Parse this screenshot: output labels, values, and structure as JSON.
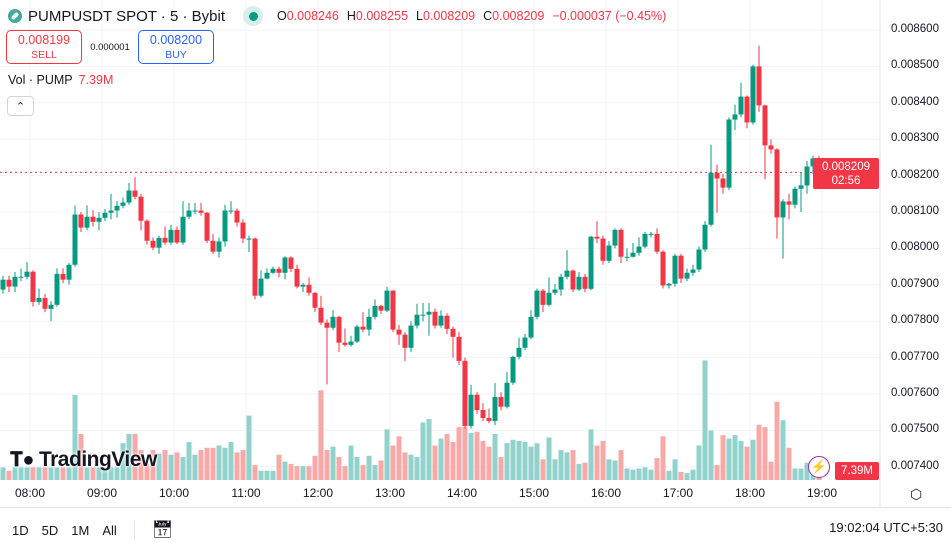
{
  "header": {
    "symbol": "PUMPUSDT SPOT · 5 · Bybit",
    "o_label": "O",
    "o": "0.008246",
    "h_label": "H",
    "h": "0.008255",
    "l_label": "L",
    "l": "0.008209",
    "c_label": "C",
    "c": "0.008209",
    "change": "−0.000037 (−0.45%)"
  },
  "trade": {
    "sell_price": "0.008199",
    "sell_label": "SELL",
    "spread": "0.000001",
    "buy_price": "0.008200",
    "buy_label": "BUY"
  },
  "volume_legend": {
    "label": "Vol · PUMP",
    "value": "7.39M"
  },
  "price_label": {
    "price": "0.008209",
    "countdown": "02:56"
  },
  "volume_label": "7.39M",
  "logo": "TradingView",
  "bottom": {
    "ranges": [
      "1D",
      "5D",
      "1M",
      "All"
    ],
    "clock": "19:02:04 UTC+5:30"
  },
  "colors": {
    "up": "#089981",
    "down": "#f23645",
    "vol_up": "#92d2cc",
    "vol_down": "#f7a9a7",
    "price_line": "#f23645"
  },
  "icons": {
    "symbol": "link-icon",
    "live": "market-open-dot-icon",
    "collapse": "chevron-up-icon",
    "bolt": "lightning-icon",
    "settings": "gear-icon",
    "calendar": "calendar-goto-icon"
  },
  "chart_data": {
    "type": "candlestick",
    "interval": "5",
    "y_ticks": [
      "0.008600",
      "0.008500",
      "0.008400",
      "0.008300",
      "0.008200",
      "0.008100",
      "0.008000",
      "0.007900",
      "0.007800",
      "0.007700",
      "0.007600",
      "0.007500",
      "0.007400"
    ],
    "x_ticks": [
      "08:00",
      "09:00",
      "10:00",
      "11:00",
      "12:00",
      "13:00",
      "14:00",
      "15:00",
      "16:00",
      "17:00",
      "18:00",
      "19:00"
    ],
    "ylim": [
      0.00737,
      0.00869
    ],
    "grid": true,
    "current_price": 0.008209,
    "close": [
      0.007914,
      0.007895,
      0.007922,
      0.007922,
      0.007936,
      0.007853,
      0.007864,
      0.007834,
      0.007845,
      0.00793,
      0.007914,
      0.007955,
      0.008093,
      0.008057,
      0.008087,
      0.008073,
      0.008084,
      0.008098,
      0.008104,
      0.008117,
      0.008126,
      0.008159,
      0.008142,
      0.008076,
      0.008021,
      0.008002,
      0.008029,
      0.008016,
      0.008051,
      0.008016,
      0.008087,
      0.008104,
      0.008104,
      0.008098,
      0.008021,
      0.007991,
      0.008019,
      0.008104,
      0.008104,
      0.008071,
      0.008027,
      0.008027,
      0.00787,
      0.007917,
      0.007933,
      0.007944,
      0.007933,
      0.007975,
      0.007944,
      0.007895,
      0.0079,
      0.007878,
      0.007837,
      0.007796,
      0.007782,
      0.007812,
      0.007741,
      0.007735,
      0.007744,
      0.007785,
      0.007777,
      0.007812,
      0.007842,
      0.007829,
      0.007884,
      0.007777,
      0.007763,
      0.007727,
      0.007788,
      0.007818,
      0.007818,
      0.007826,
      0.007788,
      0.007815,
      0.007779,
      0.007757,
      0.007691,
      0.007512,
      0.007598,
      0.007556,
      0.007534,
      0.007526,
      0.007592,
      0.007565,
      0.007631,
      0.007702,
      0.007727,
      0.007755,
      0.007812,
      0.007884,
      0.007845,
      0.007878,
      0.007887,
      0.007922,
      0.007939,
      0.007887,
      0.007922,
      0.007889,
      0.008032,
      0.008027,
      0.007966,
      0.008008,
      0.008051,
      0.007977,
      0.007977,
      0.007988,
      0.008005,
      0.00804,
      0.00804,
      0.007991,
      0.007898,
      0.007903,
      0.00798,
      0.007917,
      0.007933,
      0.007942,
      0.007997,
      0.008065,
      0.008208,
      0.008192,
      0.008167,
      0.008354,
      0.008368,
      0.008417,
      0.008346,
      0.0085,
      0.008393,
      0.008283,
      0.008272,
      0.008085,
      0.008129,
      0.00812,
      0.008164,
      0.008173,
      0.008225,
      0.008247,
      0.008209
    ],
    "open": [
      0.007887,
      0.007914,
      0.007895,
      0.007922,
      0.007922,
      0.007936,
      0.007853,
      0.007864,
      0.007834,
      0.007845,
      0.00793,
      0.007914,
      0.007955,
      0.008093,
      0.008057,
      0.008087,
      0.008073,
      0.008084,
      0.008098,
      0.008104,
      0.008117,
      0.008126,
      0.008159,
      0.008142,
      0.008076,
      0.008021,
      0.008002,
      0.008029,
      0.008016,
      0.008051,
      0.008016,
      0.008087,
      0.008104,
      0.008104,
      0.008098,
      0.008021,
      0.007991,
      0.008019,
      0.008104,
      0.008104,
      0.008071,
      0.008027,
      0.008027,
      0.00787,
      0.007917,
      0.007933,
      0.007944,
      0.007933,
      0.007975,
      0.007944,
      0.007895,
      0.0079,
      0.007878,
      0.007837,
      0.007796,
      0.007782,
      0.007812,
      0.007741,
      0.007735,
      0.007744,
      0.007785,
      0.007777,
      0.007812,
      0.007842,
      0.007829,
      0.007884,
      0.007777,
      0.007763,
      0.007727,
      0.007788,
      0.007818,
      0.007818,
      0.007826,
      0.007788,
      0.007815,
      0.007779,
      0.007757,
      0.007691,
      0.007512,
      0.007598,
      0.007556,
      0.007534,
      0.007526,
      0.007592,
      0.007565,
      0.007631,
      0.007702,
      0.007727,
      0.007755,
      0.007812,
      0.007884,
      0.007845,
      0.007878,
      0.007887,
      0.007922,
      0.007939,
      0.007887,
      0.007922,
      0.007889,
      0.008032,
      0.008027,
      0.007966,
      0.008008,
      0.008051,
      0.007977,
      0.007977,
      0.007988,
      0.008005,
      0.00804,
      0.00804,
      0.007991,
      0.007898,
      0.007903,
      0.00798,
      0.007917,
      0.007933,
      0.007942,
      0.007997,
      0.008065,
      0.008208,
      0.008192,
      0.008167,
      0.008354,
      0.008368,
      0.008417,
      0.008346,
      0.0085,
      0.008393,
      0.008283,
      0.008272,
      0.008085,
      0.008129,
      0.00812,
      0.008164,
      0.008173,
      0.008225,
      0.008246
    ],
    "high": [
      0.007925,
      0.007925,
      0.007935,
      0.007945,
      0.007962,
      0.00794,
      0.00789,
      0.007875,
      0.007855,
      0.007945,
      0.007945,
      0.00796,
      0.008118,
      0.0081,
      0.008118,
      0.008105,
      0.0081,
      0.008108,
      0.00815,
      0.00813,
      0.00814,
      0.00818,
      0.008195,
      0.00815,
      0.00808,
      0.00803,
      0.008035,
      0.00806,
      0.008065,
      0.00806,
      0.00813,
      0.008125,
      0.008125,
      0.008125,
      0.0081,
      0.00804,
      0.00803,
      0.00812,
      0.00813,
      0.00811,
      0.00808,
      0.008035,
      0.00803,
      0.00794,
      0.007945,
      0.00795,
      0.00795,
      0.007978,
      0.007978,
      0.007955,
      0.007905,
      0.00792,
      0.00788,
      0.00787,
      0.007805,
      0.00783,
      0.007815,
      0.00778,
      0.00776,
      0.00779,
      0.007825,
      0.007835,
      0.00786,
      0.007845,
      0.007895,
      0.007885,
      0.00779,
      0.00777,
      0.0078,
      0.007848,
      0.00785,
      0.00785,
      0.007835,
      0.00783,
      0.007822,
      0.007785,
      0.00777,
      0.0077,
      0.007625,
      0.007605,
      0.007575,
      0.00756,
      0.00763,
      0.007605,
      0.00766,
      0.007705,
      0.007755,
      0.007765,
      0.00783,
      0.00789,
      0.007888,
      0.00792,
      0.007902,
      0.00793,
      0.007995,
      0.007942,
      0.007935,
      0.00793,
      0.008035,
      0.008075,
      0.008035,
      0.00802,
      0.008055,
      0.008055,
      0.008,
      0.008015,
      0.00803,
      0.008045,
      0.008045,
      0.008055,
      0.007995,
      0.007905,
      0.007985,
      0.007985,
      0.007945,
      0.007955,
      0.008005,
      0.008075,
      0.008285,
      0.00823,
      0.008205,
      0.00836,
      0.008395,
      0.008455,
      0.00842,
      0.008505,
      0.008557,
      0.008395,
      0.0083,
      0.008275,
      0.008135,
      0.00815,
      0.00817,
      0.00821,
      0.00824,
      0.008255,
      0.008255
    ],
    "low": [
      0.007875,
      0.00788,
      0.00788,
      0.00791,
      0.007915,
      0.00784,
      0.007845,
      0.007825,
      0.0078,
      0.00784,
      0.007905,
      0.0079,
      0.00795,
      0.008045,
      0.00805,
      0.00806,
      0.00805,
      0.008075,
      0.00808,
      0.008085,
      0.00811,
      0.00812,
      0.008135,
      0.00805,
      0.00801,
      0.007995,
      0.007985,
      0.00801,
      0.00801,
      0.008012,
      0.00801,
      0.00808,
      0.008095,
      0.00809,
      0.008015,
      0.007985,
      0.007975,
      0.008005,
      0.008095,
      0.00806,
      0.008015,
      0.00799,
      0.00786,
      0.007865,
      0.007915,
      0.00793,
      0.00792,
      0.007915,
      0.007935,
      0.00789,
      0.00788,
      0.00787,
      0.007825,
      0.00779,
      0.007626,
      0.007775,
      0.007715,
      0.00773,
      0.00773,
      0.00774,
      0.00777,
      0.00776,
      0.007805,
      0.00782,
      0.007825,
      0.00777,
      0.007735,
      0.00769,
      0.007715,
      0.00778,
      0.0078,
      0.00776,
      0.00778,
      0.007782,
      0.007765,
      0.0077,
      0.00768,
      0.007505,
      0.007505,
      0.007545,
      0.007525,
      0.00752,
      0.007515,
      0.007555,
      0.00756,
      0.007625,
      0.007695,
      0.00772,
      0.00775,
      0.007805,
      0.007825,
      0.00784,
      0.007872,
      0.00787,
      0.007915,
      0.00788,
      0.007883,
      0.00788,
      0.007885,
      0.008015,
      0.007955,
      0.00796,
      0.008,
      0.00796,
      0.007965,
      0.007975,
      0.00798,
      0.008,
      0.00803,
      0.007985,
      0.00789,
      0.00789,
      0.007895,
      0.007905,
      0.00791,
      0.007925,
      0.007935,
      0.00799,
      0.00806,
      0.008098,
      0.00815,
      0.00816,
      0.008325,
      0.00836,
      0.00833,
      0.00834,
      0.008375,
      0.00819,
      0.00826,
      0.008027,
      0.007972,
      0.00808,
      0.00811,
      0.0081,
      0.00815,
      0.008205,
      0.008209
    ],
    "volume_unit": "M",
    "volume": [
      5.5,
      4,
      5.5,
      5.5,
      5.5,
      5.5,
      5.5,
      5.5,
      5.5,
      5.5,
      5.5,
      5.5,
      37,
      20,
      5.5,
      5.5,
      5.5,
      5.5,
      5.5,
      5.5,
      16,
      20,
      20,
      13,
      7,
      13,
      11.5,
      13,
      11,
      12,
      10,
      16.5,
      11,
      13,
      14,
      14,
      15,
      14,
      16.5,
      12,
      13,
      28,
      6.5,
      4,
      4,
      4,
      11,
      8,
      7,
      6,
      6,
      6,
      10.5,
      39,
      13,
      14.5,
      10,
      6,
      15,
      10,
      6.5,
      10.5,
      6.5,
      8.5,
      22,
      15,
      19,
      12,
      11,
      10,
      25,
      26.5,
      15,
      18,
      20,
      16.5,
      23,
      23,
      20.5,
      21,
      17,
      14.5,
      20,
      10,
      16,
      17.5,
      17,
      16.5,
      14.5,
      16,
      9,
      18.5,
      9,
      13,
      12,
      13,
      7,
      7.5,
      22,
      15,
      17,
      9,
      8.5,
      13,
      5,
      4.5,
      5,
      5.5,
      4.5,
      9.5,
      19,
      4,
      9,
      3.5,
      3,
      4.5,
      15,
      52,
      21.5,
      6.5,
      19.5,
      18,
      19.5,
      17,
      14.5,
      17.5,
      24,
      23,
      8,
      34,
      26,
      14,
      5,
      5,
      7.5,
      7.5,
      7.39
    ]
  }
}
